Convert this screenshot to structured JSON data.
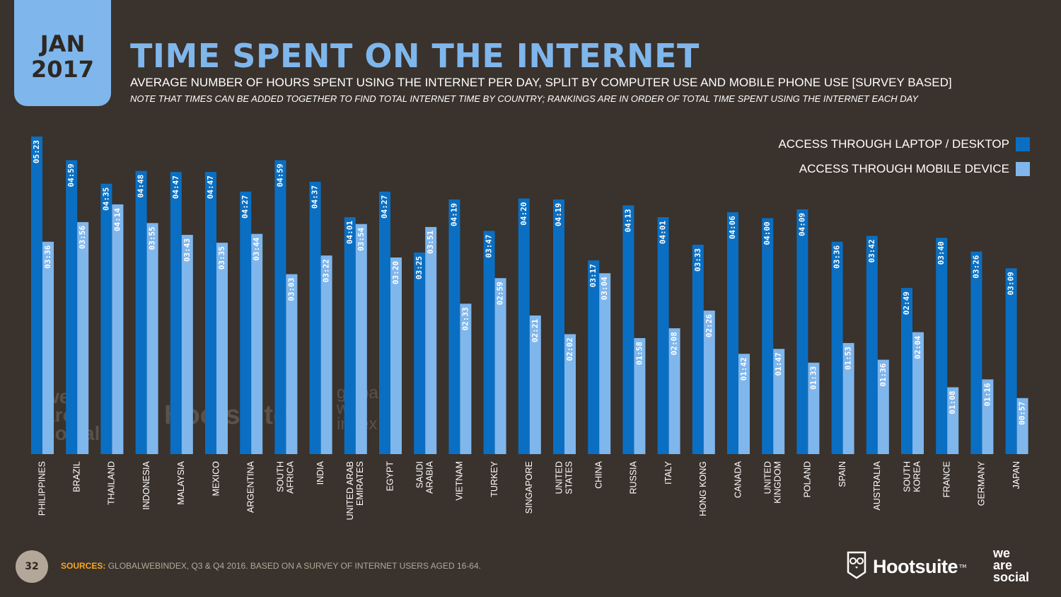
{
  "header": {
    "badge_month": "JAN",
    "badge_year": "2017",
    "title": "TIME SPENT ON THE INTERNET",
    "subtitle": "AVERAGE NUMBER OF HOURS SPENT USING THE INTERNET PER DAY, SPLIT BY COMPUTER USE AND MOBILE PHONE USE [SURVEY BASED]",
    "note": "NOTE THAT TIMES CAN BE ADDED TOGETHER TO FIND TOTAL INTERNET TIME BY COUNTRY; RANKINGS ARE IN ORDER OF TOTAL TIME SPENT USING THE INTERNET EACH DAY"
  },
  "colors": {
    "desktop": "#0a6fc2",
    "mobile": "#7fb6ec",
    "background": "#3a322c",
    "accent": "#f5a623"
  },
  "chart_data": {
    "type": "bar",
    "categories": [
      [
        "PHILIPPINES"
      ],
      [
        "BRAZIL"
      ],
      [
        "THAILAND"
      ],
      [
        "INDONESIA"
      ],
      [
        "MALAYSIA"
      ],
      [
        "MEXICO"
      ],
      [
        "ARGENTINA"
      ],
      [
        "SOUTH",
        "AFRICA"
      ],
      [
        "INDIA"
      ],
      [
        "UNITED ARAB",
        "EMIRATES"
      ],
      [
        "EGYPT"
      ],
      [
        "SAUDI",
        "ARABIA"
      ],
      [
        "VIETNAM"
      ],
      [
        "TURKEY"
      ],
      [
        "SINGAPORE"
      ],
      [
        "UNITED",
        "STATES"
      ],
      [
        "CHINA"
      ],
      [
        "RUSSIA"
      ],
      [
        "ITALY"
      ],
      [
        "HONG KONG"
      ],
      [
        "CANADA"
      ],
      [
        "UNITED",
        "KINGDOM"
      ],
      [
        "POLAND"
      ],
      [
        "SPAIN"
      ],
      [
        "AUSTRALIA"
      ],
      [
        "SOUTH",
        "KOREA"
      ],
      [
        "FRANCE"
      ],
      [
        "GERMANY"
      ],
      [
        "JAPAN"
      ]
    ],
    "series": [
      {
        "name": "ACCESS THROUGH LAPTOP / DESKTOP",
        "values": [
          "05:23",
          "04:59",
          "04:35",
          "04:48",
          "04:47",
          "04:47",
          "04:27",
          "04:59",
          "04:37",
          "04:01",
          "04:27",
          "03:25",
          "04:19",
          "03:47",
          "04:20",
          "04:19",
          "03:17",
          "04:13",
          "04:01",
          "03:33",
          "04:06",
          "04:00",
          "04:09",
          "03:36",
          "03:42",
          "02:49",
          "03:40",
          "03:26",
          "03:09"
        ]
      },
      {
        "name": "ACCESS THROUGH MOBILE DEVICE",
        "values": [
          "03:36",
          "03:56",
          "04:14",
          "03:55",
          "03:43",
          "03:35",
          "03:44",
          "03:03",
          "03:22",
          "03:54",
          "03:20",
          "03:51",
          "02:33",
          "02:59",
          "02:21",
          "02:02",
          "03:04",
          "01:58",
          "02:08",
          "02:26",
          "01:42",
          "01:47",
          "01:33",
          "01:53",
          "01:36",
          "02:04",
          "01:08",
          "01:16",
          "00:57"
        ]
      }
    ],
    "unit": "hours:minutes per day"
  },
  "footer": {
    "page_number": "32",
    "sources_key": "SOURCES:",
    "sources_text": "GLOBALWEBINDEX, Q3 & Q4 2016. BASED ON A SURVEY OF INTERNET USERS AGED 16-64.",
    "brand_hootsuite": "Hootsuite",
    "brand_tm": "TM",
    "brand_was_1": "we",
    "brand_was_2": "are",
    "brand_was_3": "social"
  },
  "watermarks": {
    "was_1": "we",
    "was_2": "are",
    "was_3": "social",
    "hootsuite": "Hootsuite",
    "gwi_1": "global",
    "gwi_2": "web",
    "gwi_3": "index"
  }
}
